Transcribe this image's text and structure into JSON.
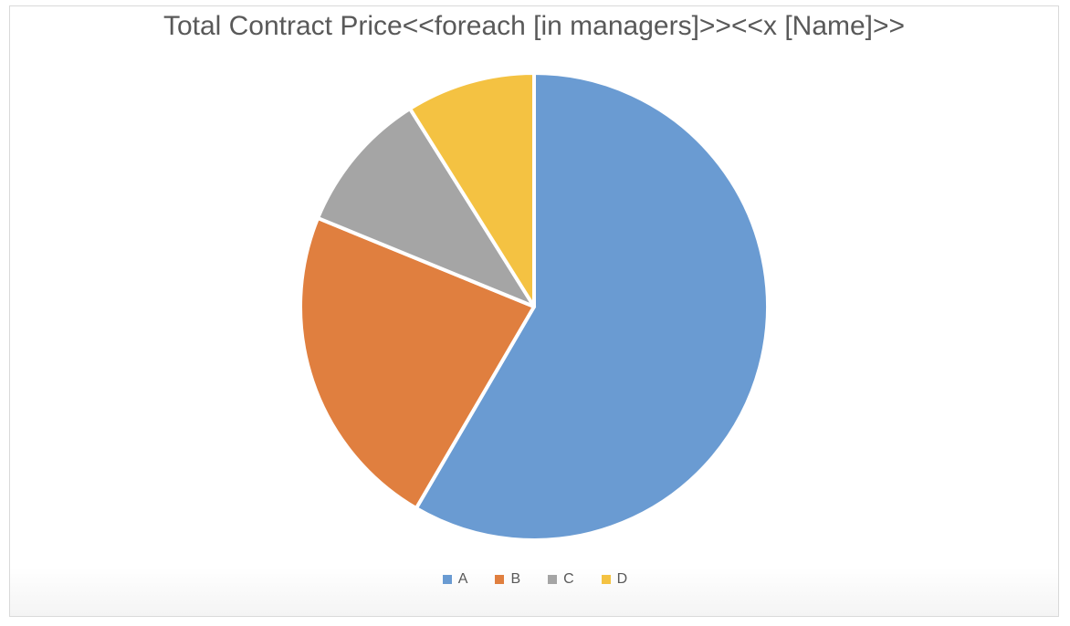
{
  "chart_data": {
    "type": "pie",
    "title": "Total Contract Price<<foreach [in managers]>><<x [Name]>>",
    "categories": [
      "A",
      "B",
      "C",
      "D"
    ],
    "values": [
      59,
      23,
      10,
      9
    ],
    "colors": [
      "#6a9bd2",
      "#e07f3f",
      "#a5a5a5",
      "#f4c242"
    ],
    "start_angle_deg": 0,
    "direction": "clockwise",
    "legend": "bottom"
  }
}
